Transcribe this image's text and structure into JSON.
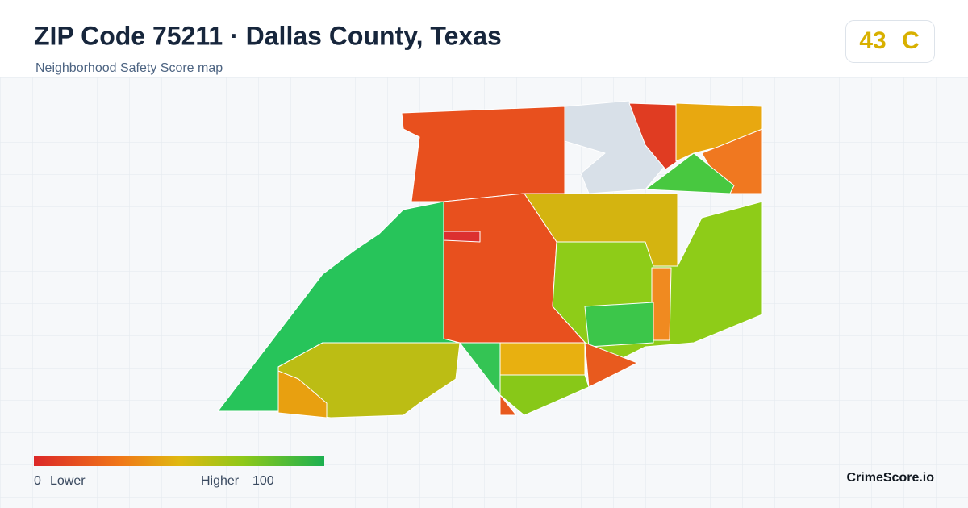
{
  "header": {
    "title": "ZIP Code 75211 · Dallas County, Texas",
    "subtitle": "Neighborhood Safety Score map"
  },
  "score": {
    "value": 43,
    "grade": "C"
  },
  "legend": {
    "min": 0,
    "min_label": "Lower",
    "max_label": "Higher",
    "max": 100
  },
  "brand": "CrimeScore.io"
}
